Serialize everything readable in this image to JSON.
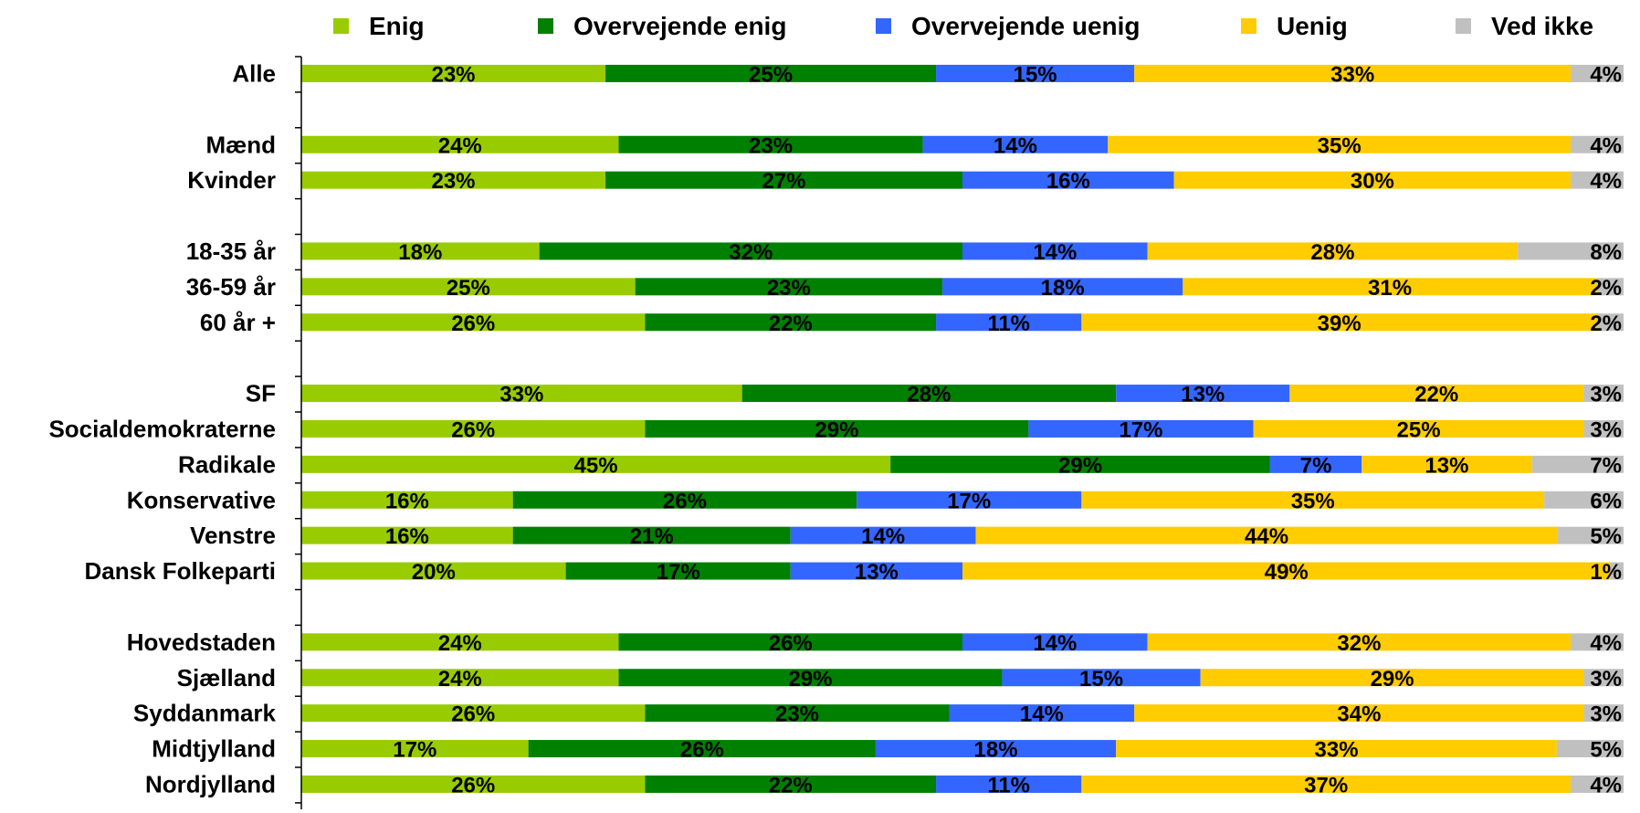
{
  "chart_data": {
    "type": "bar",
    "orientation": "horizontal",
    "stacked": true,
    "normalized": true,
    "legend_position": "top",
    "grid": false,
    "title": "",
    "xlabel": "",
    "ylabel": "",
    "categories": [
      "Alle",
      "",
      "Mænd",
      "Kvinder",
      "",
      "18-35 år",
      "36-59 år",
      "60 år +",
      "",
      "SF",
      "Socialdemokraterne",
      "Radikale",
      "Konservative",
      "Venstre",
      "Dansk Folkeparti",
      "",
      "Hovedstaden",
      "Sjælland",
      "Syddanmark",
      "Midtjylland",
      "Nordjylland"
    ],
    "series": [
      {
        "name": "Enig",
        "color": "#99CC00",
        "values": [
          23,
          null,
          24,
          23,
          null,
          18,
          25,
          26,
          null,
          33,
          26,
          45,
          16,
          16,
          20,
          null,
          24,
          24,
          26,
          17,
          26
        ]
      },
      {
        "name": "Overvejende enig",
        "color": "#008000",
        "values": [
          25,
          null,
          23,
          27,
          null,
          32,
          23,
          22,
          null,
          28,
          29,
          29,
          26,
          21,
          17,
          null,
          26,
          29,
          23,
          26,
          22
        ]
      },
      {
        "name": "Overvejende uenig",
        "color": "#3366FF",
        "values": [
          15,
          null,
          14,
          16,
          null,
          14,
          18,
          11,
          null,
          13,
          17,
          7,
          17,
          14,
          13,
          null,
          14,
          15,
          14,
          18,
          11
        ]
      },
      {
        "name": "Uenig",
        "color": "#FFCC00",
        "values": [
          33,
          null,
          35,
          30,
          null,
          28,
          31,
          39,
          null,
          22,
          25,
          13,
          35,
          44,
          49,
          null,
          32,
          29,
          34,
          33,
          37
        ]
      },
      {
        "name": "Ved ikke",
        "color": "#C0C0C0",
        "values": [
          4,
          null,
          4,
          4,
          null,
          8,
          2,
          2,
          null,
          3,
          3,
          7,
          6,
          5,
          1,
          null,
          4,
          3,
          3,
          5,
          4
        ]
      }
    ],
    "value_labels": [
      [
        "23%",
        "25%",
        "15%",
        "33%",
        "4%"
      ],
      null,
      [
        "24%",
        "23%",
        "14%",
        "35%",
        "4%"
      ],
      [
        "23%",
        "27%",
        "16%",
        "30%",
        "4%"
      ],
      null,
      [
        "18%",
        "32%",
        "14%",
        "28%",
        "8%"
      ],
      [
        "25%",
        "23%",
        "18%",
        "31%",
        "2%"
      ],
      [
        "26%",
        "22%",
        "11%",
        "39%",
        "2%"
      ],
      null,
      [
        "33%",
        "28%",
        "13%",
        "22%",
        "3%"
      ],
      [
        "26%",
        "29%",
        "17%",
        "25%",
        "3%"
      ],
      [
        "45%",
        "29%",
        "7%",
        "13%",
        "7%"
      ],
      [
        "16%",
        "26%",
        "17%",
        "35%",
        "6%"
      ],
      [
        "16%",
        "21%",
        "14%",
        "44%",
        "5%"
      ],
      [
        "20%",
        "17%",
        "13%",
        "49%",
        "1%"
      ],
      null,
      [
        "24%",
        "26%",
        "14%",
        "32%",
        "4%"
      ],
      [
        "24%",
        "29%",
        "15%",
        "29%",
        "3%"
      ],
      [
        "26%",
        "23%",
        "14%",
        "34%",
        "3%"
      ],
      [
        "17%",
        "26%",
        "18%",
        "33%",
        "5%"
      ],
      [
        "26%",
        "22%",
        "11%",
        "37%",
        "4%"
      ]
    ]
  }
}
